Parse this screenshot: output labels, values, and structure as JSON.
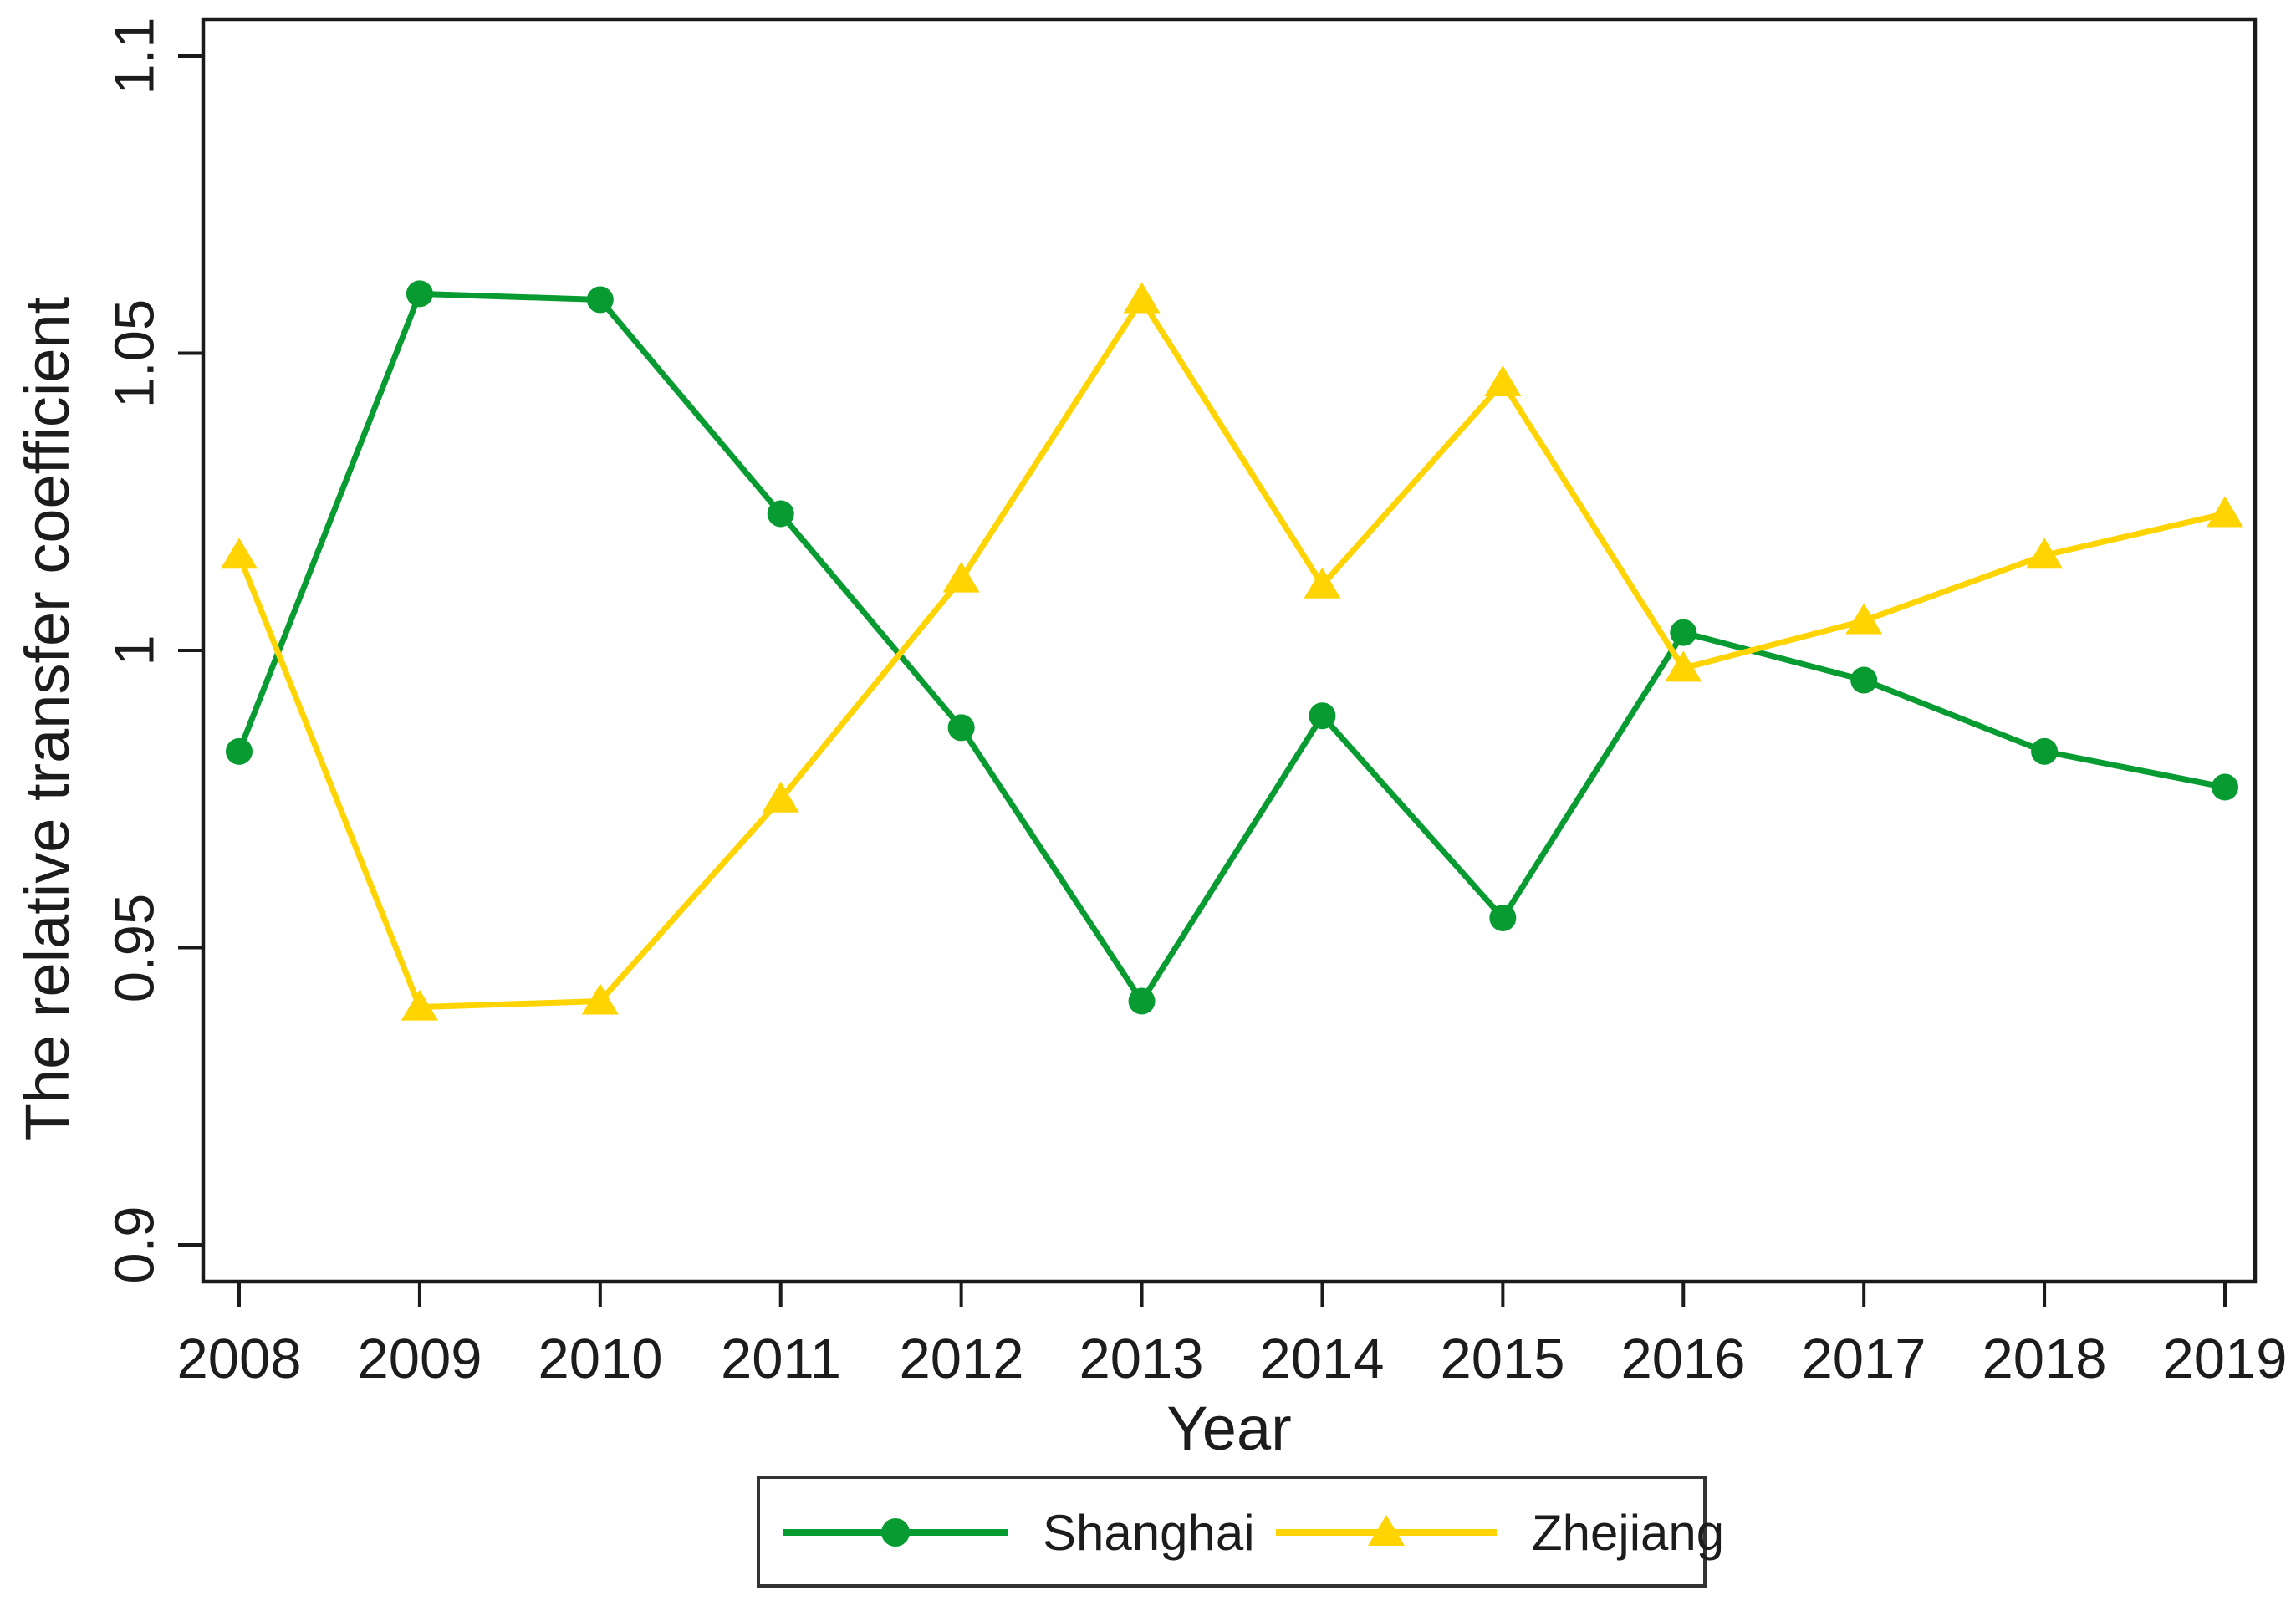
{
  "figure": {
    "background": "#ffffff"
  },
  "colors": {
    "axis": "#1a1a1a",
    "text": "#1c1c1c",
    "legend_border": "#333333",
    "shanghai_green": "#089b31",
    "zhejiang_yellow": "#ffd400"
  },
  "chart_data": {
    "type": "line",
    "title": "",
    "xlabel": "Year",
    "ylabel": "The relative transfer coefficient",
    "x": [
      2008,
      2009,
      2010,
      2011,
      2012,
      2013,
      2014,
      2015,
      2016,
      2017,
      2018,
      2019
    ],
    "ylim": [
      0.894,
      1.106
    ],
    "yticks": [
      0.9,
      0.95,
      1,
      1.05,
      1.1
    ],
    "ytick_labels": [
      "0.9",
      "0.95",
      "1",
      "1.05",
      "1.1"
    ],
    "grid": false,
    "legend_position": "bottom-center",
    "series": [
      {
        "name": "Shanghai",
        "color": "#089b31",
        "marker": "circle",
        "values": [
          0.983,
          1.06,
          1.059,
          1.023,
          0.987,
          0.941,
          0.989,
          0.955,
          1.003,
          0.995,
          0.983,
          0.977
        ]
      },
      {
        "name": "Zhejiang",
        "color": "#ffd400",
        "marker": "triangle",
        "values": [
          1.016,
          0.94,
          0.941,
          0.975,
          1.012,
          1.059,
          1.011,
          1.045,
          0.997,
          1.005,
          1.016,
          1.023
        ]
      }
    ]
  }
}
